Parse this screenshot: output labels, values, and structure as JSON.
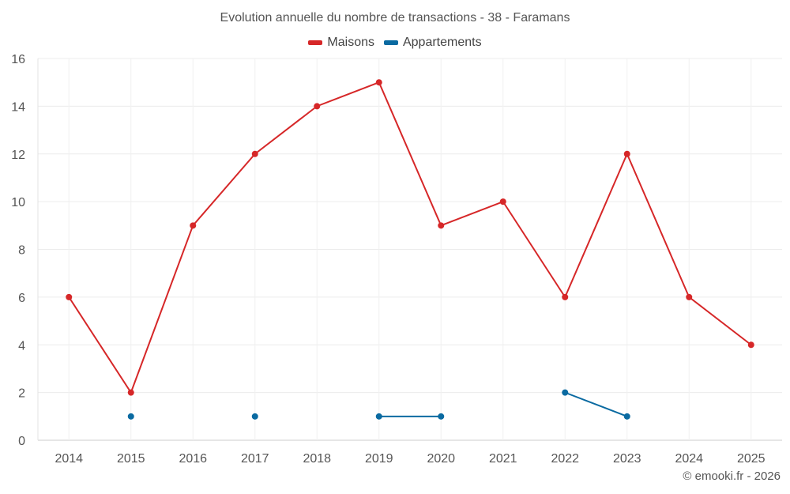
{
  "chart_data": {
    "type": "line",
    "title": "Evolution annuelle du nombre de transactions - 38 - Faramans",
    "x": [
      "2014",
      "2015",
      "2016",
      "2017",
      "2018",
      "2019",
      "2020",
      "2021",
      "2022",
      "2023",
      "2024",
      "2025"
    ],
    "ylim": [
      0,
      16
    ],
    "yticks": [
      0,
      2,
      4,
      6,
      8,
      10,
      12,
      14,
      16
    ],
    "grid": true,
    "legend_position": "top-center",
    "series": [
      {
        "name": "Maisons",
        "color": "#d62728",
        "values": [
          6,
          2,
          9,
          12,
          14,
          15,
          9,
          10,
          6,
          12,
          6,
          4
        ]
      },
      {
        "name": "Appartements",
        "color": "#0a6aa1",
        "values": [
          null,
          1,
          null,
          1,
          null,
          1,
          1,
          null,
          2,
          1,
          null,
          null
        ]
      }
    ]
  },
  "footer": {
    "credit": "© emooki.fr - 2026"
  }
}
